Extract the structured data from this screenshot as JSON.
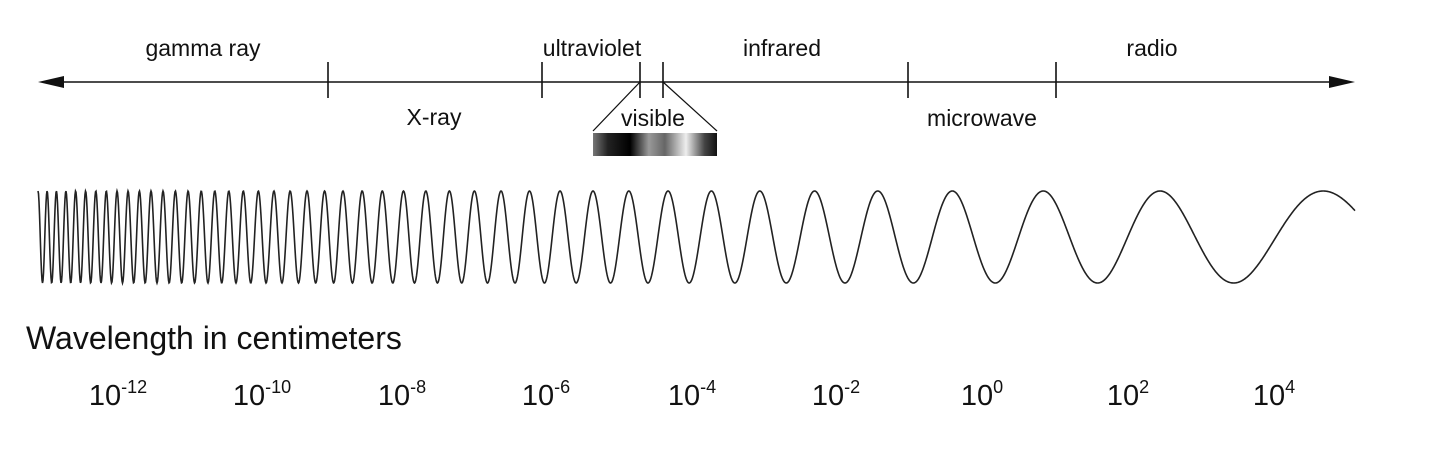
{
  "bands_top": [
    "gamma ray",
    "ultraviolet",
    "infrared",
    "radio"
  ],
  "bands_bottom": [
    "X-ray",
    "visible",
    "microwave"
  ],
  "axis_title": "Wavelength in centimeters",
  "wavelengths": [
    {
      "base": "10",
      "exponent": "-12"
    },
    {
      "base": "10",
      "exponent": "-10"
    },
    {
      "base": "10",
      "exponent": "-8"
    },
    {
      "base": "10",
      "exponent": "-6"
    },
    {
      "base": "10",
      "exponent": "-4"
    },
    {
      "base": "10",
      "exponent": "-2"
    },
    {
      "base": "10",
      "exponent": "0"
    },
    {
      "base": "10",
      "exponent": "2"
    },
    {
      "base": "10",
      "exponent": "4"
    }
  ]
}
